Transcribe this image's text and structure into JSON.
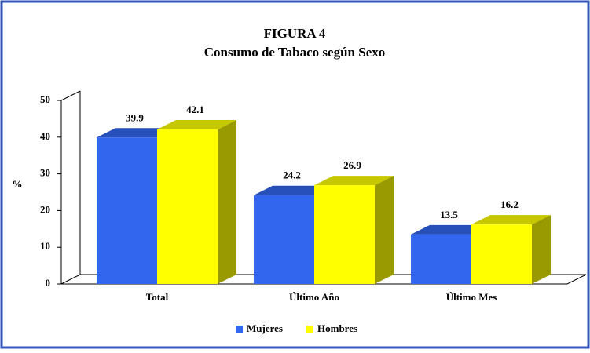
{
  "chart_data": {
    "type": "bar3d",
    "title": "FIGURA 4",
    "subtitle": "Consumo de Tabaco según Sexo",
    "y_label": "%",
    "categories": [
      "Total",
      "Último Año",
      "Último Mes"
    ],
    "series": [
      {
        "name": "Mujeres",
        "color": "#3366ee",
        "values": [
          39.9,
          24.2,
          13.5
        ]
      },
      {
        "name": "Hombres",
        "color": "#ffff00",
        "values": [
          42.1,
          26.9,
          16.2
        ]
      }
    ],
    "ylim": [
      0,
      50
    ],
    "yticks": [
      0,
      10,
      20,
      30,
      40,
      50
    ],
    "legend": "bottom"
  }
}
